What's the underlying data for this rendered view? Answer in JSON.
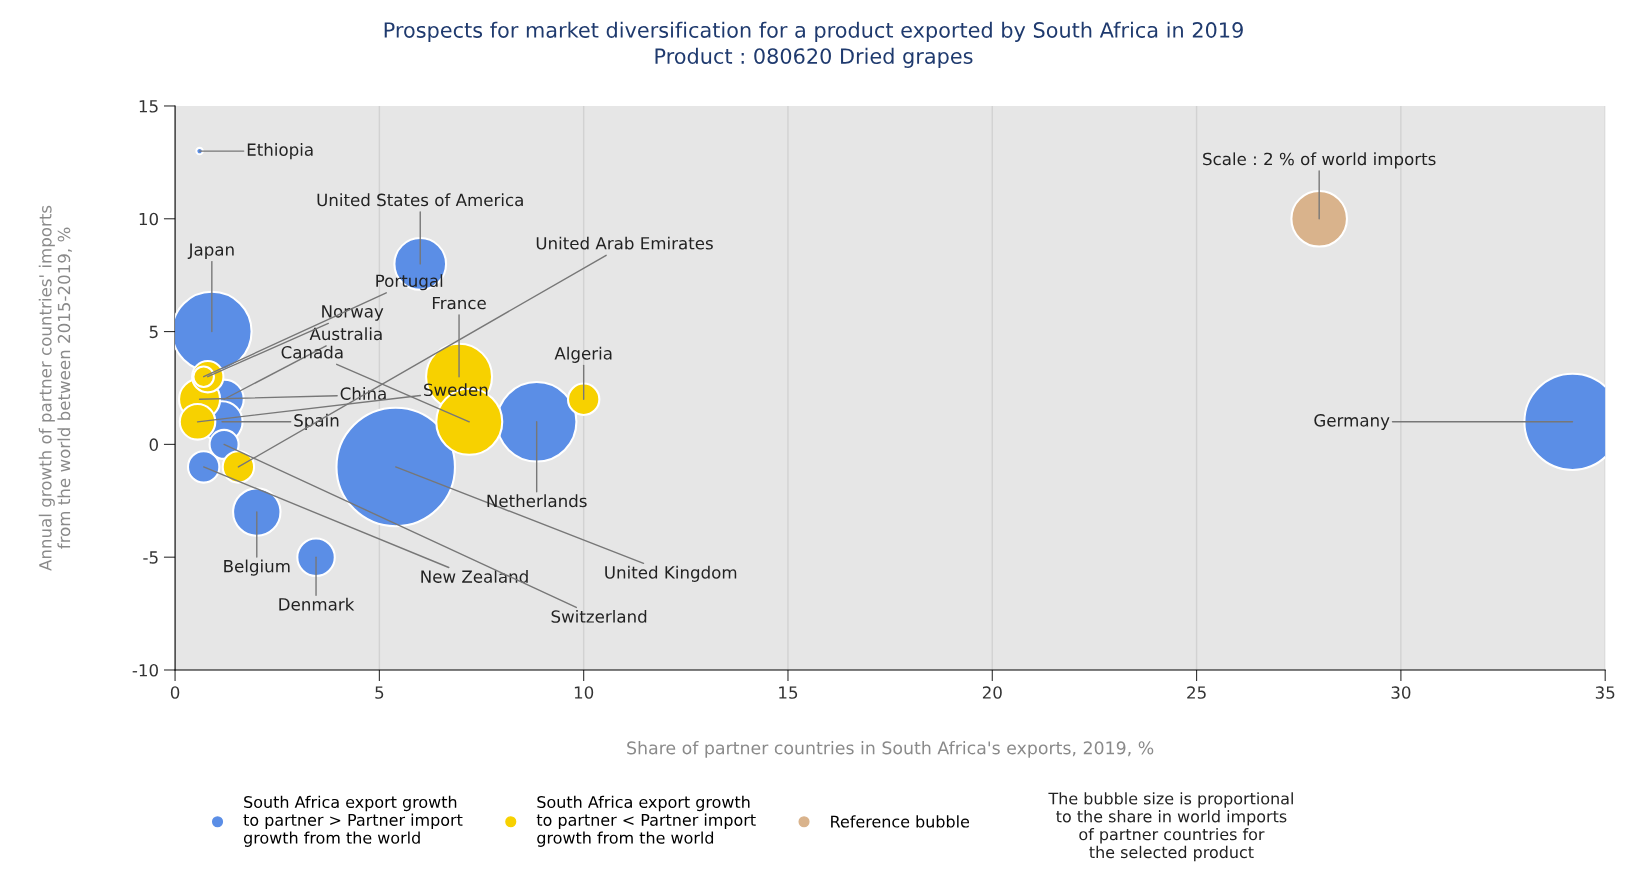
{
  "chart_data": {
    "type": "bubble",
    "title": "Prospects for market diversification for a product exported by South Africa in 2019",
    "subtitle": "Product : 080620 Dried grapes",
    "xlabel": "Share of partner countries in South Africa's exports, 2019, %",
    "ylabel": "Annual growth of partner countries' imports\nfrom the world between 2015-2019, %",
    "xlim": [
      0,
      35
    ],
    "xticks": [
      0,
      5,
      10,
      15,
      20,
      25,
      30,
      35
    ],
    "ylim": [
      -10,
      15
    ],
    "yticks": [
      -10,
      -5,
      0,
      5,
      10,
      15
    ],
    "grid": "x",
    "legend": "bottom",
    "series": [
      {
        "name": "South Africa export growth\nto partner > Partner import\ngrowth from the world",
        "color": "#5b8ee6",
        "x": [
          34.2,
          5.4,
          0.9,
          8.85,
          6.0,
          2.0,
          1.2,
          1.15,
          3.45,
          0.7,
          1.2,
          0.6
        ],
        "values": [
          1.0,
          -1.0,
          5.0,
          1.0,
          8.0,
          -3.0,
          2.0,
          1.0,
          -5.0,
          -1.0,
          0.0,
          13.0
        ],
        "sizes": [
          0.66,
          1,
          0.45,
          0.45,
          0.19,
          0.16,
          0.11,
          0.12,
          0.1,
          0.07,
          0.06,
          0.003
        ]
      },
      {
        "name": "South Africa export growth\nto partner < Partner import\ngrowth from the world",
        "color": "#f7d100",
        "x": [
          6.95,
          7.2,
          0.6,
          0.55,
          10.0,
          1.55,
          0.8,
          0.7
        ],
        "values": [
          3.0,
          1.0,
          2.0,
          1.0,
          2.0,
          -1.0,
          3.0,
          3.0
        ],
        "sizes": [
          0.31,
          0.31,
          0.12,
          0.09,
          0.07,
          0.07,
          0.07,
          0.03
        ]
      },
      {
        "name": "Reference bubble",
        "color": "#d9b38c",
        "x": [
          28.0
        ],
        "values": [
          10.0
        ],
        "sizes": [
          0.22
        ]
      }
    ],
    "annotations": [
      {
        "text": "Germany",
        "x": 34.2,
        "y": 1.0
      },
      {
        "text": "United Kingdom",
        "x": 5.4,
        "y": -1.0
      },
      {
        "text": "Japan",
        "x": 0.9,
        "y": 5.0
      },
      {
        "text": "Netherlands",
        "x": 8.85,
        "y": 1.0
      },
      {
        "text": "United States of America",
        "x": 6.0,
        "y": 8.0
      },
      {
        "text": "Belgium",
        "x": 2.0,
        "y": -3.0
      },
      {
        "text": "Australia",
        "x": 1.2,
        "y": 2.0
      },
      {
        "text": "Spain",
        "x": 1.15,
        "y": 1.0
      },
      {
        "text": "Denmark",
        "x": 3.45,
        "y": -5.0
      },
      {
        "text": "New Zealand",
        "x": 0.7,
        "y": -1.0
      },
      {
        "text": "Switzerland",
        "x": 1.2,
        "y": 0.0
      },
      {
        "text": "Ethiopia",
        "x": 0.6,
        "y": 13.0
      },
      {
        "text": "France",
        "x": 6.95,
        "y": 3.0
      },
      {
        "text": "Canada",
        "x": 7.2,
        "y": 1.0
      },
      {
        "text": "China",
        "x": 0.6,
        "y": 2.0
      },
      {
        "text": "Sweden",
        "x": 0.55,
        "y": 1.0
      },
      {
        "text": "Algeria",
        "x": 10.0,
        "y": 2.0
      },
      {
        "text": "United Arab Emirates",
        "x": 1.55,
        "y": -1.0
      },
      {
        "text": "Norway",
        "x": 0.8,
        "y": 3.0
      },
      {
        "text": "Portugal",
        "x": 0.7,
        "y": 3.0
      },
      {
        "text": "Scale : 2 % of world imports",
        "x": 28.0,
        "y": 10.0
      },
      "The bubble size is proportional\nto the share in world imports\nof partner countries for\nthe selected product"
    ]
  }
}
